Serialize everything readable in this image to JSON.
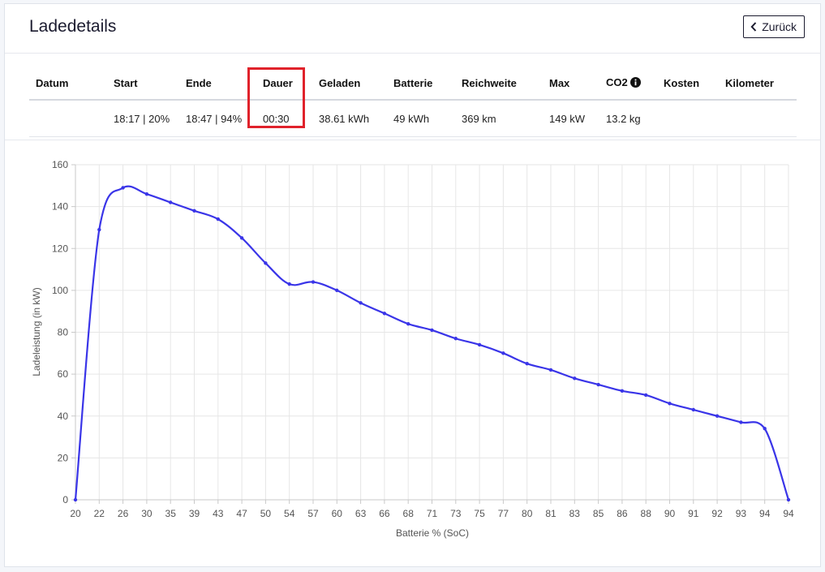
{
  "header": {
    "title": "Ladedetails",
    "back_label": "Zurück"
  },
  "table": {
    "columns": [
      "Datum",
      "Start",
      "Ende",
      "Dauer",
      "Geladen",
      "Batterie",
      "Reichweite",
      "Max",
      "CO2",
      "Kosten",
      "Kilometer"
    ],
    "row": [
      "",
      "18:17 | 20%",
      "18:47 | 94%",
      "00:30",
      "38.61 kWh",
      "49 kWh",
      "369 km",
      "149 kW",
      "13.2 kg",
      "",
      ""
    ],
    "highlighted_column": "Dauer"
  },
  "colors": {
    "line": "#3a35e8",
    "highlight": "#e0222b",
    "grid": "#e6e6e6",
    "text": "#1b1b2f"
  },
  "chart_data": {
    "type": "line",
    "xlabel": "Batterie % (SoC)",
    "ylabel": "Ladeleistung (in kW)",
    "ylim": [
      0,
      160
    ],
    "yticks": [
      0,
      20,
      40,
      60,
      80,
      100,
      120,
      140,
      160
    ],
    "grid": true,
    "categories": [
      "20",
      "22",
      "26",
      "30",
      "35",
      "39",
      "43",
      "47",
      "50",
      "54",
      "57",
      "60",
      "63",
      "66",
      "68",
      "71",
      "73",
      "75",
      "77",
      "80",
      "81",
      "83",
      "85",
      "86",
      "88",
      "90",
      "91",
      "92",
      "93",
      "94",
      "94"
    ],
    "values": [
      0,
      129,
      149,
      146,
      142,
      138,
      134,
      125,
      113,
      103,
      104,
      100,
      94,
      89,
      84,
      81,
      77,
      74,
      70,
      65,
      62,
      58,
      55,
      52,
      50,
      46,
      43,
      40,
      37,
      34,
      0
    ]
  }
}
